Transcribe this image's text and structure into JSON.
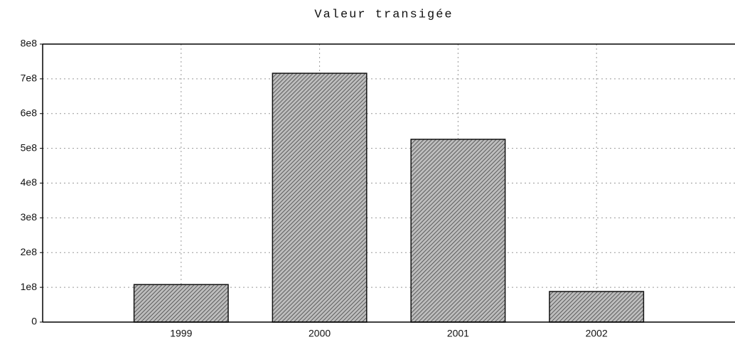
{
  "chart_data": {
    "type": "bar",
    "title": "Valeur transigée",
    "categories": [
      "1999",
      "2000",
      "2001",
      "2002"
    ],
    "values": [
      108000000,
      716000000,
      526000000,
      88000000
    ],
    "color": "#888888",
    "ylim": [
      0,
      800000000
    ],
    "yticks": [
      0,
      {
        "value": 100000000,
        "label": "1e8"
      },
      {
        "value": 200000000,
        "label": "2e8"
      },
      {
        "value": 300000000,
        "label": "3e8"
      },
      {
        "value": 400000000,
        "label": "4e8"
      },
      {
        "value": 500000000,
        "label": "5e8"
      },
      {
        "value": 600000000,
        "label": "6e8"
      },
      {
        "value": 700000000,
        "label": "7e8"
      },
      {
        "value": 800000000,
        "label": "8e8"
      }
    ],
    "grid": true
  }
}
